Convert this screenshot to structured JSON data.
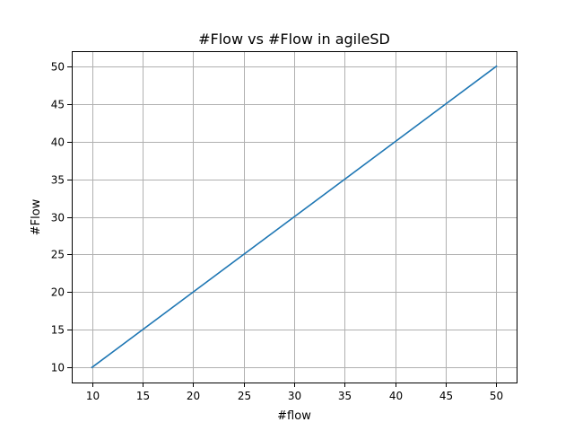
{
  "chart_data": {
    "type": "line",
    "title": "#Flow vs #Flow in agileSD",
    "xlabel": "#flow",
    "ylabel": "#Flow",
    "xlim": [
      8.0,
      52.0
    ],
    "ylim": [
      8.0,
      52.0
    ],
    "x_ticks": [
      10,
      15,
      20,
      25,
      30,
      35,
      40,
      45,
      50
    ],
    "y_ticks": [
      10,
      15,
      20,
      25,
      30,
      35,
      40,
      45,
      50
    ],
    "grid": true,
    "series": [
      {
        "color": "#1f77b4",
        "x": [
          10,
          50
        ],
        "y": [
          10,
          50
        ]
      }
    ]
  }
}
